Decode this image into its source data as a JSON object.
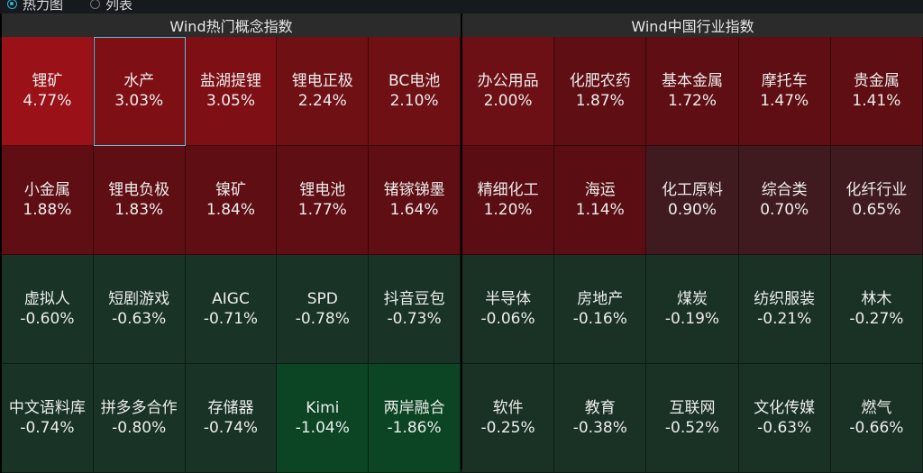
{
  "view_toggle": {
    "options": [
      {
        "label": "热力图",
        "selected": true
      },
      {
        "label": "列表",
        "selected": false
      }
    ]
  },
  "colors": {
    "selection_border": "#5bc0d8",
    "header_bg": "#2b2b2b",
    "background": "#16191e"
  },
  "left_panel": {
    "title": "Wind热门概念指数",
    "cells": [
      {
        "name": "锂矿",
        "pct": "4.77%",
        "color": "#9a1118"
      },
      {
        "name": "水产",
        "pct": "3.03%",
        "color": "#7e1015",
        "selected": true
      },
      {
        "name": "盐湖提锂",
        "pct": "3.05%",
        "color": "#7e1015"
      },
      {
        "name": "锂电正极",
        "pct": "2.24%",
        "color": "#6f1015"
      },
      {
        "name": "BC电池",
        "pct": "2.10%",
        "color": "#6f1015"
      },
      {
        "name": "小金属",
        "pct": "1.88%",
        "color": "#5f0e13"
      },
      {
        "name": "锂电负极",
        "pct": "1.83%",
        "color": "#5f0e13"
      },
      {
        "name": "镍矿",
        "pct": "1.84%",
        "color": "#5f0e13"
      },
      {
        "name": "锂电池",
        "pct": "1.77%",
        "color": "#5f0e13"
      },
      {
        "name": "锗镓锑墨",
        "pct": "1.64%",
        "color": "#5f0e13"
      },
      {
        "name": "虚拟人",
        "pct": "-0.60%",
        "color": "#193326"
      },
      {
        "name": "短剧游戏",
        "pct": "-0.63%",
        "color": "#193326"
      },
      {
        "name": "AIGC",
        "pct": "-0.71%",
        "color": "#193326"
      },
      {
        "name": "SPD",
        "pct": "-0.78%",
        "color": "#193326"
      },
      {
        "name": "抖音豆包",
        "pct": "-0.73%",
        "color": "#193326"
      },
      {
        "name": "中文语料库",
        "pct": "-0.74%",
        "color": "#193326"
      },
      {
        "name": "拼多多合作",
        "pct": "-0.80%",
        "color": "#193326"
      },
      {
        "name": "存储器",
        "pct": "-0.74%",
        "color": "#193326"
      },
      {
        "name": "Kimi",
        "pct": "-1.04%",
        "color": "#0b4523"
      },
      {
        "name": "两岸融合",
        "pct": "-1.86%",
        "color": "#0b4523"
      }
    ]
  },
  "right_panel": {
    "title": "Wind中国行业指数",
    "cells": [
      {
        "name": "办公用品",
        "pct": "2.00%",
        "color": "#6d1015"
      },
      {
        "name": "化肥农药",
        "pct": "1.87%",
        "color": "#5f0e13"
      },
      {
        "name": "基本金属",
        "pct": "1.72%",
        "color": "#5f0e13"
      },
      {
        "name": "摩托车",
        "pct": "1.47%",
        "color": "#5f0e13"
      },
      {
        "name": "贵金属",
        "pct": "1.41%",
        "color": "#5f0e13"
      },
      {
        "name": "精细化工",
        "pct": "1.20%",
        "color": "#5a0e13"
      },
      {
        "name": "海运",
        "pct": "1.14%",
        "color": "#5a0e13"
      },
      {
        "name": "化工原料",
        "pct": "0.90%",
        "color": "#3f1a1f"
      },
      {
        "name": "综合类",
        "pct": "0.70%",
        "color": "#3f1a1f"
      },
      {
        "name": "化纤行业",
        "pct": "0.65%",
        "color": "#3f1a1f"
      },
      {
        "name": "半导体",
        "pct": "-0.06%",
        "color": "#1a3126"
      },
      {
        "name": "房地产",
        "pct": "-0.16%",
        "color": "#1a3126"
      },
      {
        "name": "煤炭",
        "pct": "-0.19%",
        "color": "#1a3126"
      },
      {
        "name": "纺织服装",
        "pct": "-0.21%",
        "color": "#1a3126"
      },
      {
        "name": "林木",
        "pct": "-0.27%",
        "color": "#1a3126"
      },
      {
        "name": "软件",
        "pct": "-0.25%",
        "color": "#1a3126"
      },
      {
        "name": "教育",
        "pct": "-0.38%",
        "color": "#1a3126"
      },
      {
        "name": "互联网",
        "pct": "-0.52%",
        "color": "#1a3126"
      },
      {
        "name": "文化传媒",
        "pct": "-0.63%",
        "color": "#1a3126"
      },
      {
        "name": "燃气",
        "pct": "-0.66%",
        "color": "#1a3126"
      }
    ]
  }
}
